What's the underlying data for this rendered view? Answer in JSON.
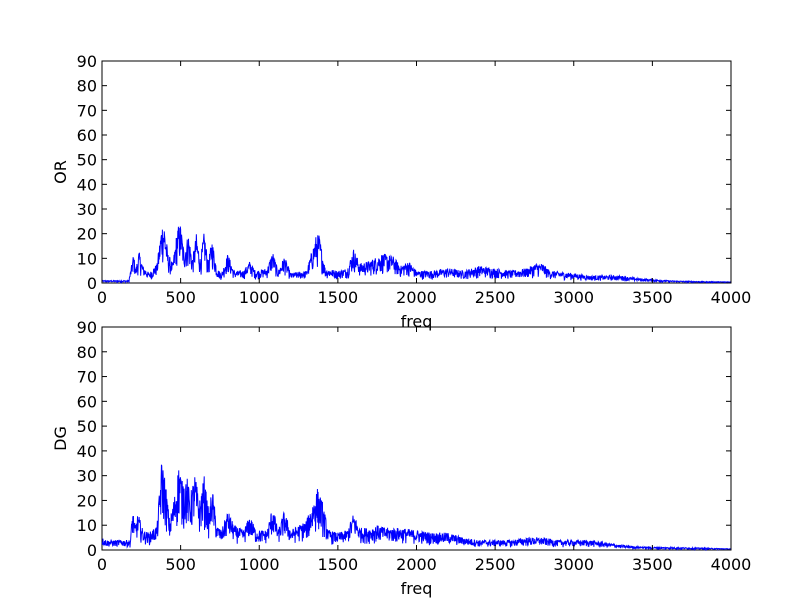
{
  "chart_data": [
    {
      "type": "line",
      "xlabel": "freq",
      "ylabel": "OR",
      "xlim": [
        0,
        4000
      ],
      "ylim": [
        0,
        90
      ],
      "xticks": [
        "0",
        "500",
        "1000",
        "1500",
        "2000",
        "2500",
        "3000",
        "3500",
        "4000"
      ],
      "yticks": [
        "0",
        "10",
        "20",
        "30",
        "40",
        "50",
        "60",
        "70",
        "80",
        "90"
      ],
      "grid": false,
      "line_color": "#0000ff",
      "series": [
        {
          "envelope": [
            [
              0,
              1
            ],
            [
              100,
              1
            ],
            [
              170,
              1
            ],
            [
              190,
              8
            ],
            [
              200,
              12
            ],
            [
              215,
              6
            ],
            [
              235,
              13
            ],
            [
              260,
              7
            ],
            [
              300,
              4
            ],
            [
              350,
              8
            ],
            [
              380,
              24
            ],
            [
              395,
              25
            ],
            [
              420,
              12
            ],
            [
              450,
              8
            ],
            [
              480,
              23
            ],
            [
              500,
              24
            ],
            [
              520,
              14
            ],
            [
              550,
              20
            ],
            [
              575,
              10
            ],
            [
              600,
              20
            ],
            [
              625,
              10
            ],
            [
              650,
              21
            ],
            [
              675,
              9
            ],
            [
              700,
              18
            ],
            [
              730,
              6
            ],
            [
              760,
              4
            ],
            [
              800,
              12
            ],
            [
              840,
              5
            ],
            [
              900,
              5
            ],
            [
              940,
              9
            ],
            [
              975,
              5
            ],
            [
              1050,
              6
            ],
            [
              1085,
              13
            ],
            [
              1120,
              5
            ],
            [
              1160,
              11
            ],
            [
              1200,
              4
            ],
            [
              1300,
              5
            ],
            [
              1360,
              19
            ],
            [
              1380,
              20
            ],
            [
              1420,
              6
            ],
            [
              1500,
              5
            ],
            [
              1560,
              6
            ],
            [
              1600,
              14
            ],
            [
              1640,
              8
            ],
            [
              1700,
              9
            ],
            [
              1780,
              12
            ],
            [
              1850,
              11
            ],
            [
              1900,
              7
            ],
            [
              1950,
              9
            ],
            [
              2000,
              5
            ],
            [
              2100,
              5
            ],
            [
              2200,
              6
            ],
            [
              2300,
              5
            ],
            [
              2400,
              7
            ],
            [
              2500,
              6
            ],
            [
              2600,
              5
            ],
            [
              2700,
              6
            ],
            [
              2760,
              8
            ],
            [
              2800,
              8
            ],
            [
              2850,
              5
            ],
            [
              3000,
              4
            ],
            [
              3100,
              3
            ],
            [
              3200,
              3
            ],
            [
              3300,
              3
            ],
            [
              3400,
              2
            ],
            [
              3500,
              1.5
            ],
            [
              3600,
              1
            ],
            [
              3700,
              0.8
            ],
            [
              3850,
              0.6
            ],
            [
              4000,
              0.5
            ]
          ]
        }
      ]
    },
    {
      "type": "line",
      "xlabel": "freq",
      "ylabel": "DG",
      "xlim": [
        0,
        4000
      ],
      "ylim": [
        0,
        90
      ],
      "xticks": [
        "0",
        "500",
        "1000",
        "1500",
        "2000",
        "2500",
        "3000",
        "3500",
        "4000"
      ],
      "yticks": [
        "0",
        "10",
        "20",
        "30",
        "40",
        "50",
        "60",
        "70",
        "80",
        "90"
      ],
      "grid": false,
      "line_color": "#0000ff",
      "series": [
        {
          "envelope": [
            [
              0,
              5
            ],
            [
              30,
              4
            ],
            [
              100,
              4
            ],
            [
              180,
              4
            ],
            [
              195,
              17
            ],
            [
              210,
              10
            ],
            [
              230,
              15
            ],
            [
              260,
              8
            ],
            [
              300,
              7
            ],
            [
              350,
              10
            ],
            [
              380,
              37
            ],
            [
              400,
              30
            ],
            [
              430,
              12
            ],
            [
              470,
              25
            ],
            [
              490,
              36
            ],
            [
              510,
              28
            ],
            [
              540,
              30
            ],
            [
              560,
              22
            ],
            [
              590,
              31
            ],
            [
              620,
              20
            ],
            [
              650,
              30
            ],
            [
              680,
              15
            ],
            [
              700,
              26
            ],
            [
              730,
              10
            ],
            [
              760,
              8
            ],
            [
              800,
              16
            ],
            [
              840,
              10
            ],
            [
              900,
              8
            ],
            [
              940,
              14
            ],
            [
              980,
              8
            ],
            [
              1050,
              8
            ],
            [
              1085,
              18
            ],
            [
              1120,
              8
            ],
            [
              1160,
              16
            ],
            [
              1200,
              8
            ],
            [
              1300,
              12
            ],
            [
              1370,
              25
            ],
            [
              1400,
              20
            ],
            [
              1440,
              8
            ],
            [
              1500,
              7
            ],
            [
              1560,
              8
            ],
            [
              1600,
              15
            ],
            [
              1640,
              9
            ],
            [
              1700,
              9
            ],
            [
              1750,
              10
            ],
            [
              1800,
              9
            ],
            [
              1900,
              9
            ],
            [
              2000,
              8
            ],
            [
              2100,
              7
            ],
            [
              2200,
              7
            ],
            [
              2300,
              5
            ],
            [
              2400,
              4
            ],
            [
              2500,
              4
            ],
            [
              2600,
              4
            ],
            [
              2700,
              5
            ],
            [
              2800,
              5
            ],
            [
              2900,
              4
            ],
            [
              3000,
              4
            ],
            [
              3100,
              4
            ],
            [
              3200,
              3
            ],
            [
              3300,
              2
            ],
            [
              3400,
              1.5
            ],
            [
              3500,
              1.2
            ],
            [
              3700,
              1
            ],
            [
              3900,
              0.7
            ],
            [
              4000,
              0.5
            ]
          ]
        }
      ]
    }
  ]
}
